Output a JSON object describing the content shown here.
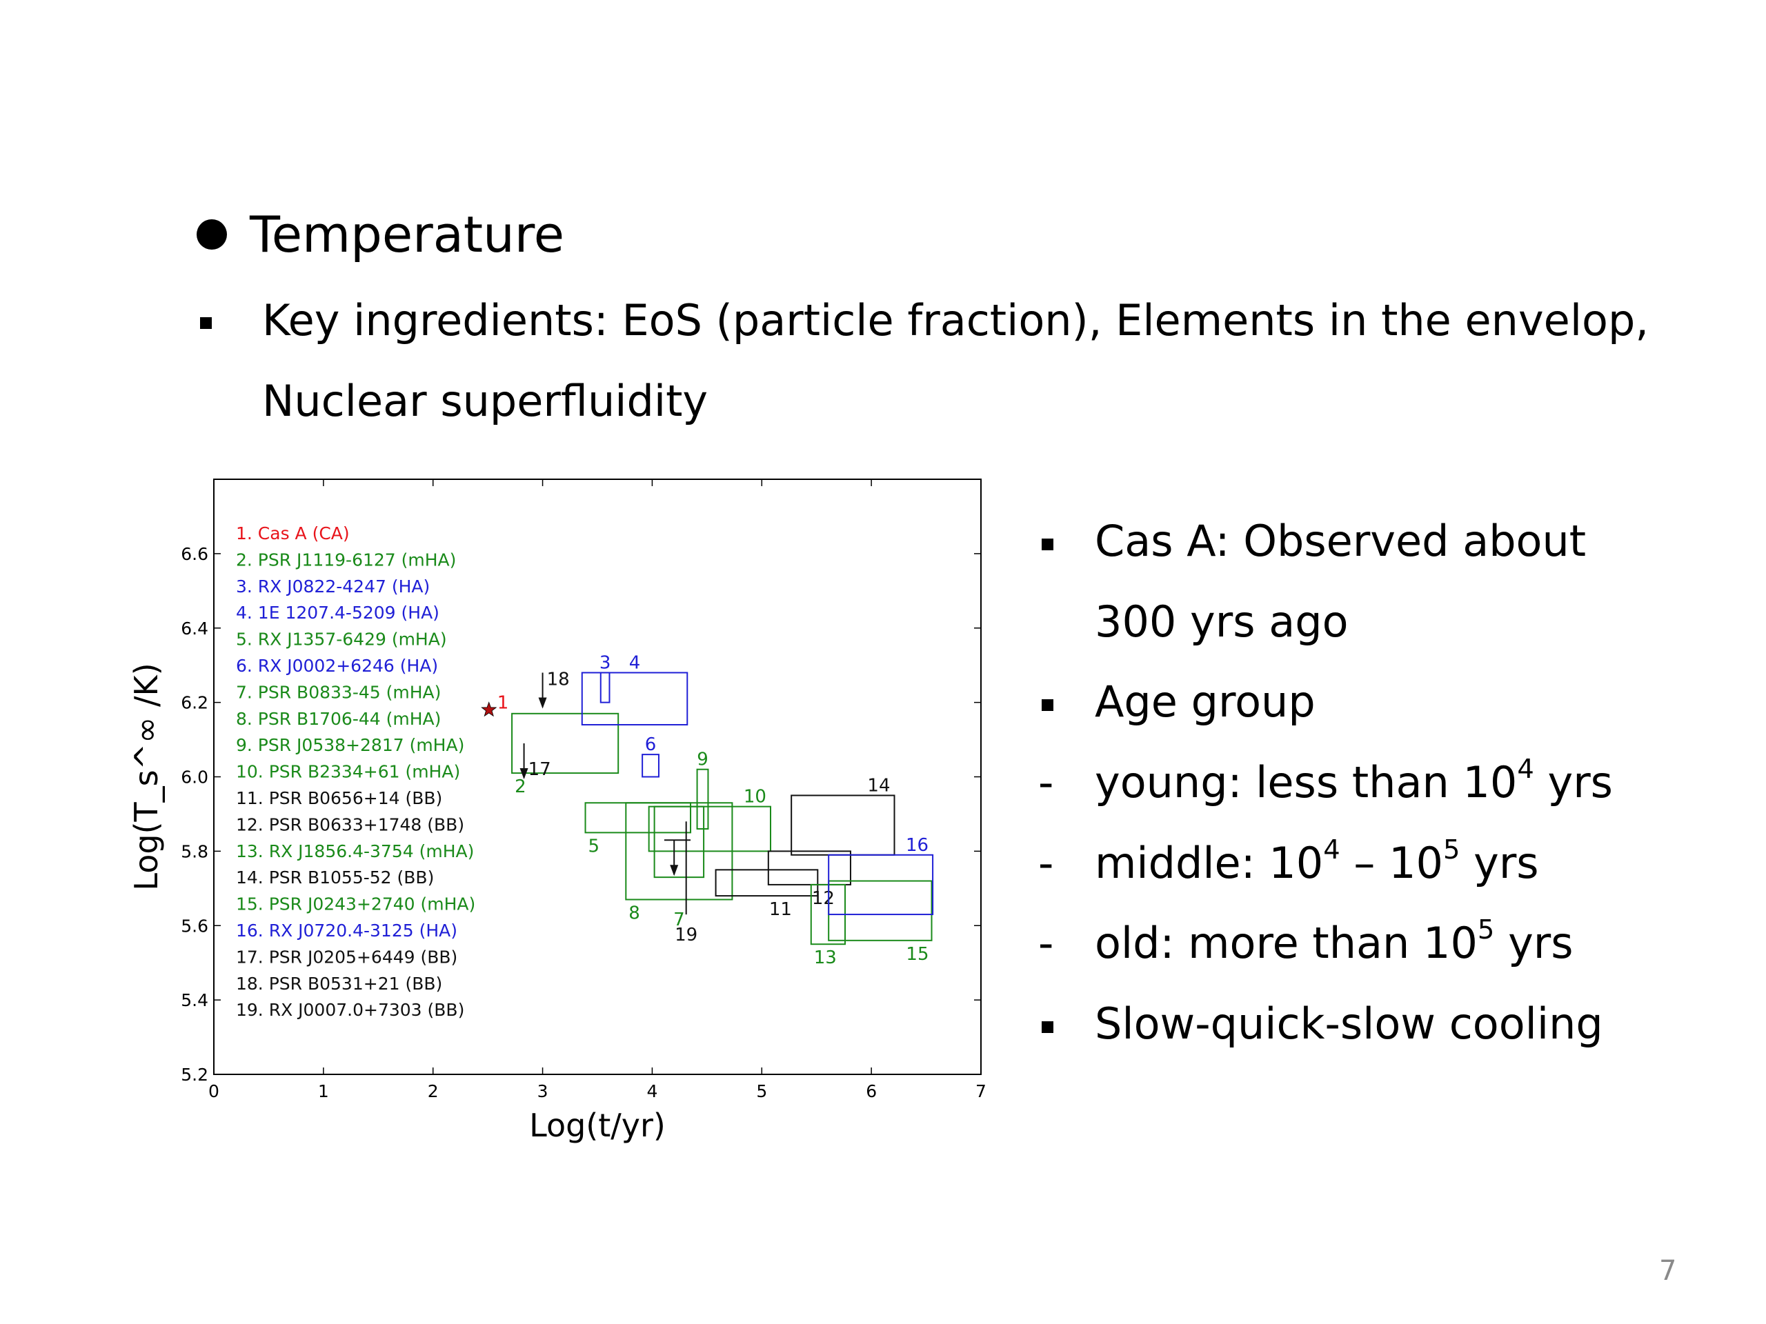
{
  "heading": "Temperature",
  "subbullet": {
    "line1": "Key ingredients: EoS (particle fraction), Elements in the envelop,",
    "line2": "Nuclear superfluidity"
  },
  "right_list": [
    {
      "marker": "square",
      "pre": "Cas A: Observed about",
      "sup": "",
      "post": ""
    },
    {
      "marker": "none",
      "pre": "300 yrs ago",
      "sup": "",
      "post": ""
    },
    {
      "marker": "square",
      "pre": "Age group",
      "sup": "",
      "post": ""
    },
    {
      "marker": "dash",
      "pre": "young: less than 10",
      "sup": "4",
      "post": " yrs"
    },
    {
      "marker": "dash",
      "pre": "middle: 10",
      "sup": "4",
      "post": " – 10",
      "sup2": "5",
      "post2": " yrs"
    },
    {
      "marker": "dash",
      "pre": "old: more than 10",
      "sup": "5",
      "post": " yrs"
    },
    {
      "marker": "square",
      "pre": "Slow-quick-slow cooling",
      "sup": "",
      "post": ""
    }
  ],
  "page_number": "7",
  "chart_data": {
    "type": "scatter",
    "xlabel": "Log(t/yr)",
    "ylabel": "Log(T_s^∞ /K)",
    "xlim": [
      0,
      7
    ],
    "ylim": [
      5.2,
      6.8
    ],
    "xticks": [
      "0",
      "1",
      "2",
      "3",
      "4",
      "5",
      "6",
      "7"
    ],
    "yticks": [
      "5.2",
      "5.4",
      "5.6",
      "5.8",
      "6.0",
      "6.2",
      "6.4",
      "6.6"
    ],
    "colors": {
      "CA": "#e8141b",
      "mHA": "#1a8a1a",
      "HA": "#1f1fd6",
      "BB": "#111111"
    },
    "legend": [
      {
        "label": "1. Cas A (CA)",
        "group": "CA"
      },
      {
        "label": "2. PSR J1119-6127 (mHA)",
        "group": "mHA"
      },
      {
        "label": "3. RX J0822-4247 (HA)",
        "group": "HA"
      },
      {
        "label": "4. 1E 1207.4-5209 (HA)",
        "group": "HA"
      },
      {
        "label": "5. RX J1357-6429 (mHA)",
        "group": "mHA"
      },
      {
        "label": "6. RX J0002+6246 (HA)",
        "group": "HA"
      },
      {
        "label": "7. PSR B0833-45 (mHA)",
        "group": "mHA"
      },
      {
        "label": "8. PSR B1706-44 (mHA)",
        "group": "mHA"
      },
      {
        "label": "9. PSR J0538+2817 (mHA)",
        "group": "mHA"
      },
      {
        "label": "10. PSR B2334+61 (mHA)",
        "group": "mHA"
      },
      {
        "label": "11. PSR B0656+14 (BB)",
        "group": "BB"
      },
      {
        "label": "12. PSR B0633+1748 (BB)",
        "group": "BB"
      },
      {
        "label": "13. RX J1856.4-3754 (mHA)",
        "group": "mHA"
      },
      {
        "label": "14. PSR B1055-52 (BB)",
        "group": "BB"
      },
      {
        "label": "15. PSR J0243+2740 (mHA)",
        "group": "mHA"
      },
      {
        "label": "16. RX J0720.4-3125 (HA)",
        "group": "HA"
      },
      {
        "label": "17. PSR J0205+6449 (BB)",
        "group": "BB"
      },
      {
        "label": "18. PSR B0531+21 (BB)",
        "group": "BB"
      },
      {
        "label": "19. RX J0007.0+7303 (BB)",
        "group": "BB"
      }
    ],
    "star": {
      "id": "1",
      "x": 2.51,
      "y": 6.18,
      "group": "CA"
    },
    "boxes": [
      {
        "id": "2",
        "x": [
          2.72,
          3.69
        ],
        "y": [
          6.01,
          6.17
        ],
        "group": "mHA"
      },
      {
        "id": "3",
        "x": [
          3.53,
          3.61
        ],
        "y": [
          6.2,
          6.28
        ],
        "group": "HA"
      },
      {
        "id": "4",
        "x": [
          3.36,
          4.32
        ],
        "y": [
          6.14,
          6.28
        ],
        "group": "HA"
      },
      {
        "id": "5",
        "x": [
          3.39,
          4.35
        ],
        "y": [
          5.85,
          5.93
        ],
        "group": "mHA"
      },
      {
        "id": "6",
        "x": [
          3.91,
          4.06
        ],
        "y": [
          6.0,
          6.06
        ],
        "group": "HA"
      },
      {
        "id": "7",
        "x": [
          4.02,
          4.47
        ],
        "y": [
          5.73,
          5.92
        ],
        "group": "mHA"
      },
      {
        "id": "8",
        "x": [
          3.76,
          4.73
        ],
        "y": [
          5.67,
          5.93
        ],
        "group": "mHA"
      },
      {
        "id": "9",
        "x": [
          4.41,
          4.51
        ],
        "y": [
          5.86,
          6.02
        ],
        "group": "mHA"
      },
      {
        "id": "10",
        "x": [
          3.97,
          5.08
        ],
        "y": [
          5.8,
          5.92
        ],
        "group": "mHA"
      },
      {
        "id": "11",
        "x": [
          4.58,
          5.51
        ],
        "y": [
          5.68,
          5.75
        ],
        "group": "BB"
      },
      {
        "id": "12",
        "x": [
          5.06,
          5.81
        ],
        "y": [
          5.71,
          5.8
        ],
        "group": "BB"
      },
      {
        "id": "13",
        "x": [
          5.45,
          5.76
        ],
        "y": [
          5.55,
          5.71
        ],
        "group": "mHA"
      },
      {
        "id": "14",
        "x": [
          5.27,
          6.21
        ],
        "y": [
          5.79,
          5.95
        ],
        "group": "BB"
      },
      {
        "id": "15",
        "x": [
          5.61,
          6.55
        ],
        "y": [
          5.56,
          5.72
        ],
        "group": "mHA"
      },
      {
        "id": "16",
        "x": [
          5.61,
          6.56
        ],
        "y": [
          5.63,
          5.79
        ],
        "group": "HA"
      }
    ],
    "crosses": [
      {
        "id": "19",
        "x": [
          4.11,
          4.35
        ],
        "xc": 4.31,
        "y": 5.83,
        "yerr": [
          5.77,
          5.88
        ],
        "group": "BB"
      }
    ],
    "upper_limits": [
      {
        "id": "17",
        "x": 2.83,
        "y": 6.09,
        "group": "BB"
      },
      {
        "id": "18",
        "x": 3.0,
        "y": 6.28,
        "group": "BB"
      },
      {
        "id": "19b",
        "x": 4.2,
        "y": 5.83,
        "group": "BB"
      }
    ]
  }
}
